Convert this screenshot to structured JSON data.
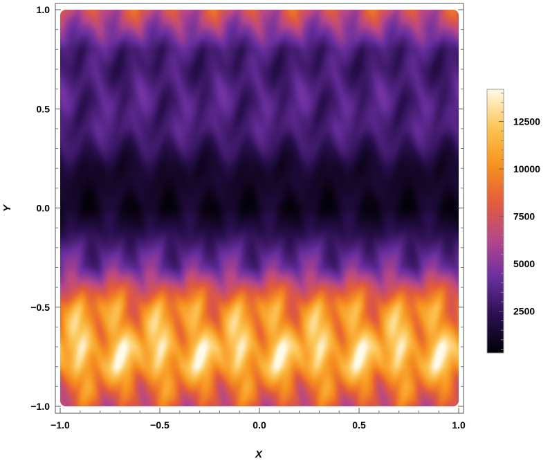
{
  "chart_data": {
    "type": "heatmap",
    "title": "",
    "xlabel": "X",
    "ylabel": "Y",
    "xlim": [
      -1.0,
      1.0
    ],
    "ylim": [
      -1.0,
      1.0
    ],
    "x_ticks": [
      "−1.0",
      "−0.5",
      "0.0",
      "0.5",
      "1.0"
    ],
    "x_tick_values": [
      -1.0,
      -0.5,
      0.0,
      0.5,
      1.0
    ],
    "y_ticks": [
      "1.0",
      "0.5",
      "0.0",
      "−0.5",
      "−1.0"
    ],
    "y_tick_values": [
      1.0,
      0.5,
      0.0,
      -0.5,
      -1.0
    ],
    "colorbar": {
      "range": [
        300,
        14200
      ],
      "ticks": [
        "2500",
        "5000",
        "7500",
        "10000",
        "12500"
      ],
      "tick_values": [
        2500,
        5000,
        7500,
        10000,
        12500
      ],
      "colormap": [
        "#000004",
        "#2a0f4f",
        "#6a2fa0",
        "#b5478a",
        "#e35c3a",
        "#f7931e",
        "#fcc555",
        "#fffbe8"
      ]
    },
    "field_profile_y": [
      -1.0,
      -0.9,
      -0.8,
      -0.7,
      -0.6,
      -0.5,
      -0.4,
      -0.3,
      -0.2,
      -0.1,
      0.0,
      0.1,
      0.2,
      0.3,
      0.4,
      0.5,
      0.6,
      0.7,
      0.8,
      0.9,
      1.0
    ],
    "field_profile_value": [
      7500,
      9500,
      11500,
      12000,
      11000,
      10000,
      7500,
      4500,
      3200,
      2000,
      1000,
      1200,
      1500,
      2500,
      3300,
      3500,
      3300,
      3000,
      3300,
      5200,
      7500
    ],
    "ripple_period_x": 0.2,
    "grid": false
  }
}
